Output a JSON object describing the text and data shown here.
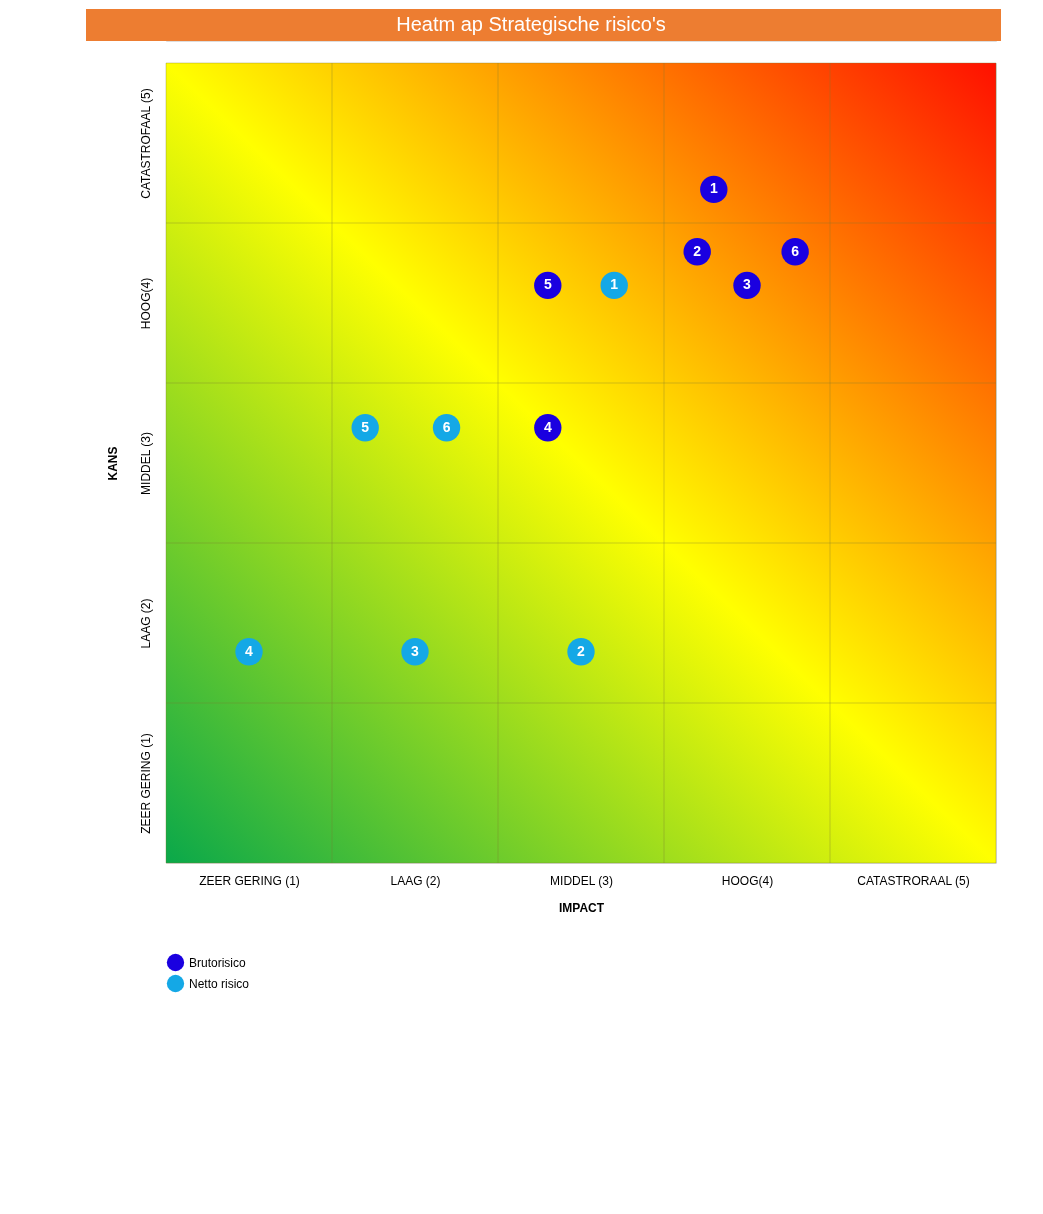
{
  "chart_data": {
    "type": "scatter",
    "title": "Heatm ap Strategische risico's",
    "xlabel": "IMPACT",
    "ylabel": "KANS",
    "xlim": [
      0.5,
      5.5
    ],
    "ylim": [
      0.5,
      5.5
    ],
    "xticks": [
      {
        "value": 0.5,
        "label": null
      },
      {
        "value": 1,
        "label": "ZEER GERING (1)"
      },
      {
        "value": 1.5,
        "label": null
      },
      {
        "value": 2,
        "label": "LAAG (2)"
      },
      {
        "value": 2.5,
        "label": null
      },
      {
        "value": 3,
        "label": "MIDDEL (3)"
      },
      {
        "value": 3.5,
        "label": null
      },
      {
        "value": 4,
        "label": "HOOG(4)"
      },
      {
        "value": 4.5,
        "label": null
      },
      {
        "value": 5,
        "label": "CATASTRORAAL (5)"
      },
      {
        "value": 5.5,
        "label": null
      }
    ],
    "yticks": [
      {
        "value": 0.5,
        "label": null
      },
      {
        "value": 1,
        "label": "ZEER GERING (1)"
      },
      {
        "value": 1.5,
        "label": null
      },
      {
        "value": 2,
        "label": "LAAG (2)"
      },
      {
        "value": 2.5,
        "label": null
      },
      {
        "value": 3,
        "label": "MIDDEL (3)"
      },
      {
        "value": 3.5,
        "label": null
      },
      {
        "value": 4,
        "label": "HOOG(4)"
      },
      {
        "value": 4.5,
        "label": null
      },
      {
        "value": 5,
        "label": "CATASTROFAAL (5)"
      },
      {
        "value": 5.5,
        "label": null
      }
    ],
    "grid": true,
    "legend": "bottom left",
    "marker": "circle",
    "annotations": [
      {
        "text": "1",
        "x": 3.8,
        "y": 4.71
      },
      {
        "text": "2",
        "x": 3.7,
        "y": 4.32
      },
      {
        "text": "3",
        "x": 4.0,
        "y": 4.11
      },
      {
        "text": "4",
        "x": 2.8,
        "y": 3.22
      },
      {
        "text": "5",
        "x": 2.8,
        "y": 4.11
      },
      {
        "text": "6",
        "x": 4.29,
        "y": 4.32
      },
      {
        "text": "1",
        "x": 3.2,
        "y": 4.11
      },
      {
        "text": "2",
        "x": 3.0,
        "y": 1.82
      },
      {
        "text": "3",
        "x": 2.0,
        "y": 1.82
      },
      {
        "text": "4",
        "x": 1.0,
        "y": 1.82
      },
      {
        "text": "5",
        "x": 1.7,
        "y": 3.22
      },
      {
        "text": "6",
        "x": 2.19,
        "y": 3.22
      }
    ],
    "series": [
      {
        "name": "Brutorisico",
        "color": "#1a00e0",
        "x": [
          3.8,
          3.7,
          4.0,
          2.8,
          2.8,
          4.29
        ],
        "values": [
          4.71,
          4.32,
          4.11,
          3.22,
          4.11,
          4.32
        ]
      },
      {
        "name": "Netto risico",
        "color": "#14a8e6",
        "x": [
          3.2,
          3.0,
          2.0,
          1.0,
          1.7,
          2.19
        ],
        "values": [
          4.11,
          1.82,
          1.82,
          1.82,
          3.22,
          3.22
        ]
      }
    ]
  }
}
